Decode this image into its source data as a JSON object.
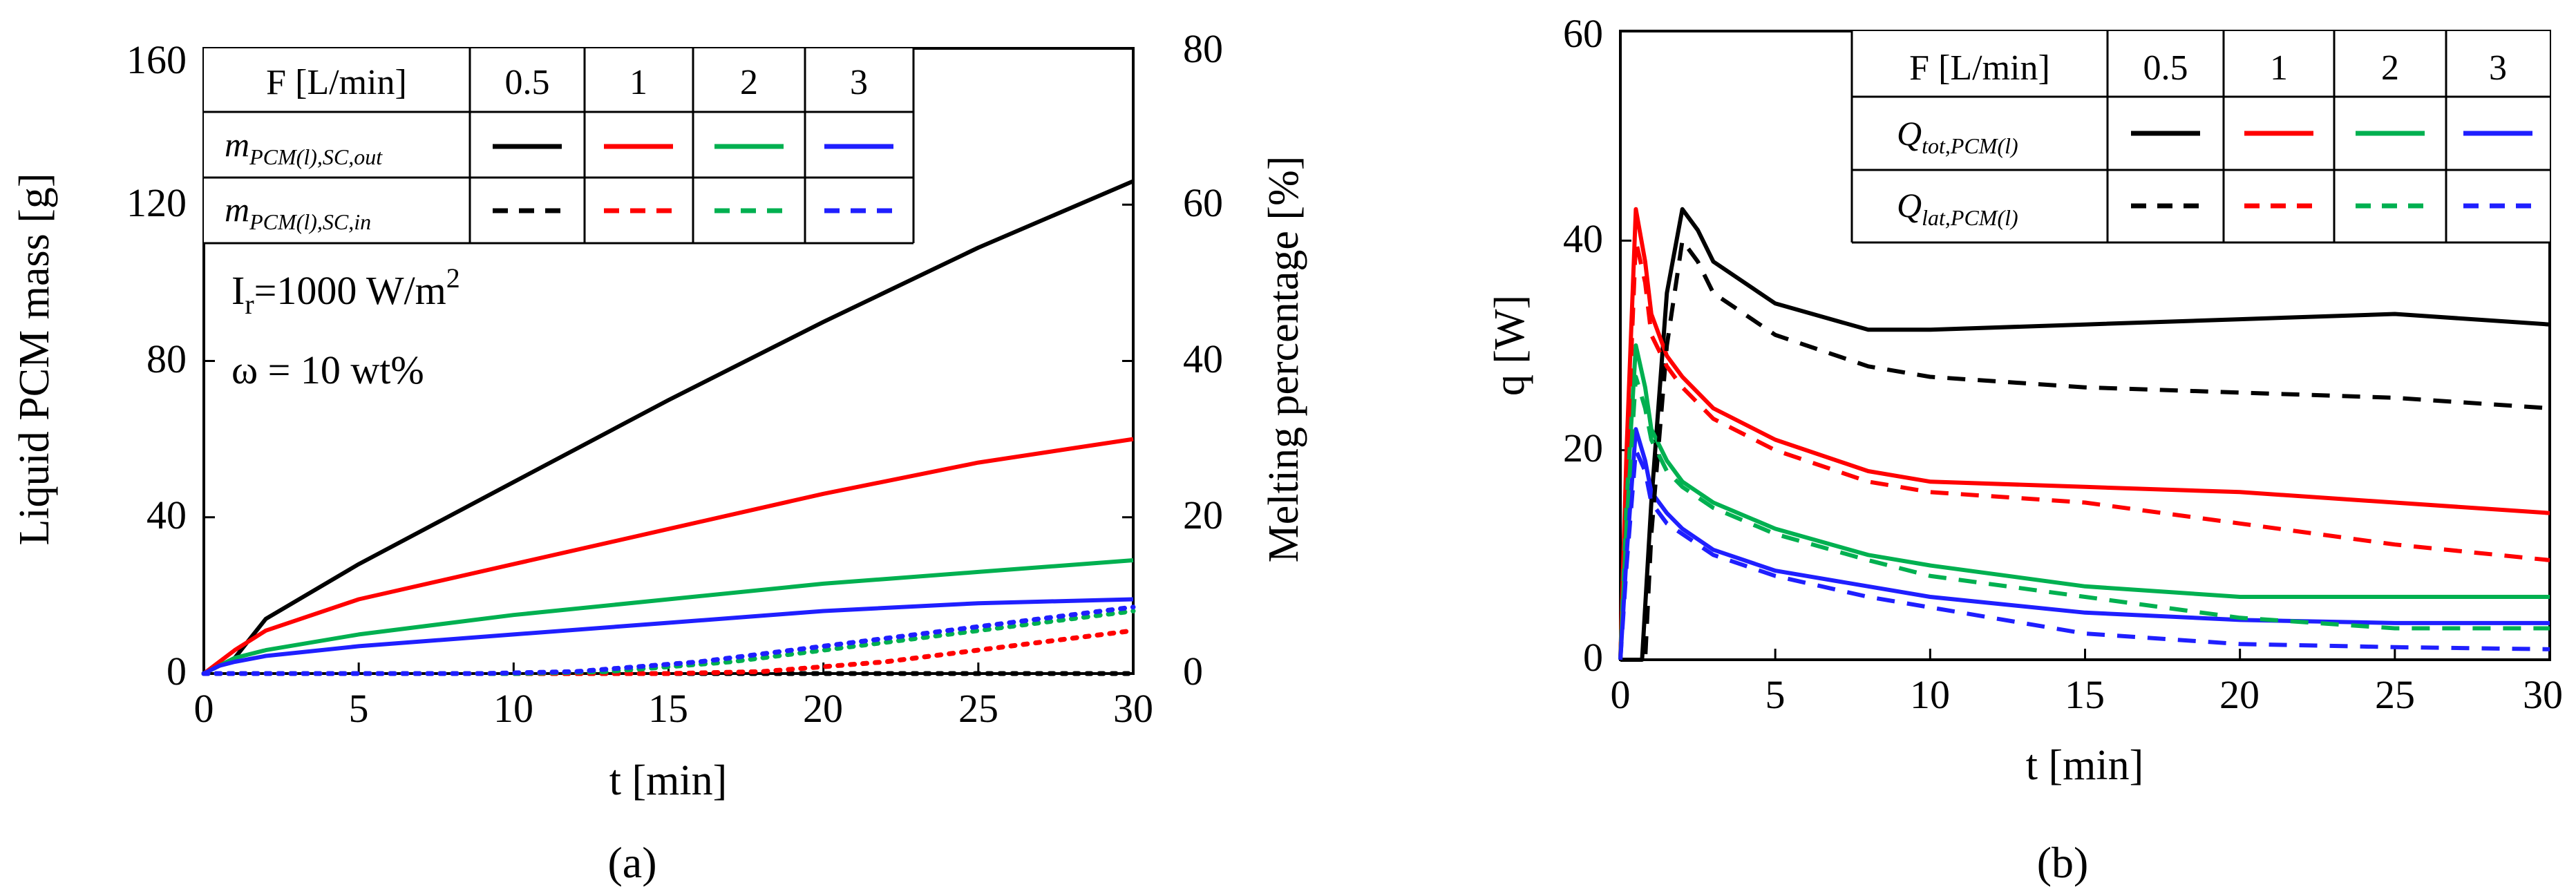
{
  "colors": {
    "0.5": "#000000",
    "1": "#ff0000",
    "2": "#00b050",
    "3": "#1f1fff"
  },
  "chart_data": [
    {
      "type": "line",
      "label": "(a)",
      "xlabel": "t [min]",
      "ylabel": "Liquid PCM mass [g]",
      "y2label": "Melting percentage [%]",
      "xlim": [
        0,
        30
      ],
      "ylim": [
        0,
        160
      ],
      "y2lim": [
        0,
        80
      ],
      "xticks": [
        0,
        5,
        10,
        15,
        20,
        25,
        30
      ],
      "yticks": [
        0,
        40,
        80,
        120,
        160
      ],
      "y2ticks": [
        0,
        20,
        40,
        60,
        80
      ],
      "annotations": [
        "I",
        "r",
        "=1000 W/m",
        "2",
        "ω = 10 wt%"
      ],
      "legend": {
        "header": "F [L/min]",
        "flows": [
          "0.5",
          "1",
          "2",
          "3"
        ],
        "rows": [
          {
            "label": "m",
            "sub": "PCM(l),SC,out",
            "style": "solid"
          },
          {
            "label": "m",
            "sub": "PCM(l),SC,in",
            "style": "dashed"
          }
        ]
      },
      "series": [
        {
          "name": "out 0.5",
          "flow": "0.5",
          "style": "solid",
          "x": [
            0,
            1,
            2,
            5,
            10,
            15,
            20,
            25,
            30
          ],
          "y": [
            0,
            4,
            14,
            28,
            49,
            70,
            90,
            109,
            126
          ]
        },
        {
          "name": "out 1",
          "flow": "1",
          "style": "solid",
          "x": [
            0,
            0.5,
            1,
            2,
            5,
            10,
            15,
            20,
            25,
            30
          ],
          "y": [
            0,
            3,
            6,
            11,
            19,
            28,
            37,
            46,
            54,
            60
          ]
        },
        {
          "name": "out 2",
          "flow": "2",
          "style": "solid",
          "x": [
            0,
            0.5,
            1,
            2,
            5,
            10,
            15,
            20,
            25,
            30
          ],
          "y": [
            0,
            2,
            4,
            6,
            10,
            15,
            19,
            23,
            26,
            29
          ]
        },
        {
          "name": "out 3",
          "flow": "3",
          "style": "solid",
          "x": [
            0,
            0.5,
            1,
            2,
            5,
            10,
            15,
            20,
            25,
            30
          ],
          "y": [
            0,
            2,
            3,
            4.5,
            7,
            10,
            13,
            16,
            18,
            19
          ]
        },
        {
          "name": "in 0.5",
          "flow": "0.5",
          "style": "dotted",
          "x": [
            0,
            10,
            20,
            30
          ],
          "y": [
            0,
            0,
            0,
            0
          ]
        },
        {
          "name": "in 1",
          "flow": "1",
          "style": "dotted",
          "x": [
            0,
            15,
            18,
            22,
            26,
            30
          ],
          "y": [
            0,
            0,
            0.5,
            3,
            7,
            11
          ]
        },
        {
          "name": "in 2",
          "flow": "2",
          "style": "dotted",
          "x": [
            0,
            10,
            13,
            17,
            22,
            26,
            30
          ],
          "y": [
            0,
            0,
            0.5,
            3,
            8,
            12,
            16
          ]
        },
        {
          "name": "in 3",
          "flow": "3",
          "style": "dotted",
          "x": [
            0,
            9,
            12,
            16,
            20,
            25,
            30
          ],
          "y": [
            0,
            0,
            0.5,
            3,
            7,
            12,
            17
          ]
        }
      ]
    },
    {
      "type": "line",
      "label": "(b)",
      "xlabel": "t [min]",
      "ylabel": "q [W]",
      "xlim": [
        0,
        30
      ],
      "ylim": [
        0,
        60
      ],
      "xticks": [
        0,
        5,
        10,
        15,
        20,
        25,
        30
      ],
      "yticks": [
        0,
        20,
        40,
        60
      ],
      "legend": {
        "header": "F [L/min]",
        "flows": [
          "0.5",
          "1",
          "2",
          "3"
        ],
        "rows": [
          {
            "label": "Q",
            "sub": "tot,PCM(l)",
            "style": "solid"
          },
          {
            "label": "Q",
            "sub": "lat,PCM(l)",
            "style": "dashed"
          }
        ]
      },
      "series": [
        {
          "name": "Qtot 0.5",
          "flow": "0.5",
          "style": "solid",
          "x": [
            0,
            0.7,
            1,
            1.5,
            2,
            2.5,
            3,
            5,
            8,
            10,
            15,
            20,
            25,
            30
          ],
          "y": [
            0,
            0,
            15,
            35,
            43,
            41,
            38,
            34,
            31.5,
            31.5,
            32,
            32.5,
            33,
            32
          ]
        },
        {
          "name": "Qtot 1",
          "flow": "1",
          "style": "solid",
          "x": [
            0,
            0.2,
            0.5,
            0.8,
            1,
            1.5,
            2,
            3,
            5,
            8,
            10,
            15,
            20,
            25,
            30
          ],
          "y": [
            0,
            20,
            43,
            38,
            33,
            29,
            27,
            24,
            21,
            18,
            17,
            16.5,
            16,
            15,
            14
          ]
        },
        {
          "name": "Qtot 2",
          "flow": "2",
          "style": "solid",
          "x": [
            0,
            0.2,
            0.5,
            0.8,
            1,
            1.5,
            2,
            3,
            5,
            8,
            10,
            15,
            20,
            25,
            30
          ],
          "y": [
            0,
            15,
            30,
            26,
            22,
            19,
            17,
            15,
            12.5,
            10,
            9,
            7,
            6,
            6,
            6
          ]
        },
        {
          "name": "Qtot 3",
          "flow": "3",
          "style": "solid",
          "x": [
            0,
            0.2,
            0.5,
            0.8,
            1,
            1.5,
            2,
            3,
            5,
            8,
            10,
            15,
            20,
            25,
            30
          ],
          "y": [
            0,
            10,
            22,
            19,
            16,
            14,
            12.5,
            10.5,
            8.5,
            7,
            6,
            4.5,
            3.8,
            3.5,
            3.5
          ]
        },
        {
          "name": "Qlat 0.5",
          "flow": "0.5",
          "style": "dashed",
          "x": [
            0,
            0.8,
            1,
            1.5,
            2,
            2.5,
            3,
            5,
            8,
            10,
            15,
            20,
            25,
            30
          ],
          "y": [
            0,
            0,
            12,
            30,
            40,
            38,
            35,
            31,
            28,
            27,
            26,
            25.5,
            25,
            24
          ]
        },
        {
          "name": "Qlat 1",
          "flow": "1",
          "style": "dashed",
          "x": [
            0,
            0.2,
            0.5,
            0.8,
            1,
            1.5,
            2,
            3,
            5,
            8,
            10,
            15,
            20,
            25,
            30
          ],
          "y": [
            0,
            18,
            40,
            36,
            31,
            28,
            26,
            23,
            20,
            17,
            16,
            15,
            13,
            11,
            9.5
          ]
        },
        {
          "name": "Qlat 2",
          "flow": "2",
          "style": "dashed",
          "x": [
            0,
            0.2,
            0.5,
            0.8,
            1,
            1.5,
            2,
            3,
            5,
            8,
            10,
            15,
            20,
            25,
            30
          ],
          "y": [
            0,
            13,
            27,
            24,
            21,
            18,
            16.5,
            14.5,
            12,
            9.5,
            8,
            6,
            4,
            3,
            3
          ]
        },
        {
          "name": "Qlat 3",
          "flow": "3",
          "style": "dashed",
          "x": [
            0,
            0.2,
            0.5,
            0.8,
            1,
            1.5,
            2,
            3,
            5,
            8,
            10,
            15,
            20,
            25,
            30
          ],
          "y": [
            0,
            9,
            20,
            18,
            15,
            13,
            12,
            10,
            8,
            6,
            5,
            2.5,
            1.5,
            1.2,
            1
          ]
        }
      ]
    }
  ]
}
